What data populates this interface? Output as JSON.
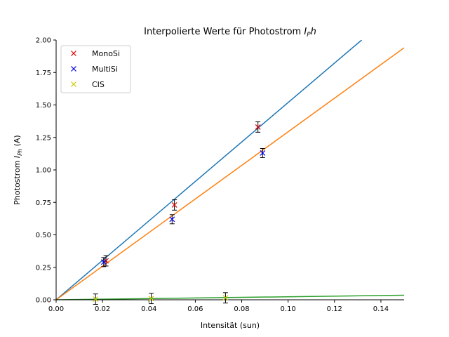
{
  "chart_data": {
    "type": "scatter",
    "title": "Interpolierte Werte für Photostrom ",
    "title_symbol": "I",
    "title_sub": "P",
    "title_tail": "h",
    "xlabel": "Intensität (sun)",
    "ylabel": "Photostrom ",
    "ylabel_symbol": "I",
    "ylabel_sub": "Ph",
    "ylabel_tail": " (A)",
    "xlim": [
      0,
      0.15
    ],
    "ylim": [
      0,
      2.0
    ],
    "xticks": [
      0.0,
      0.02,
      0.04,
      0.06,
      0.08,
      0.1,
      0.12,
      0.14
    ],
    "xtick_labels": [
      "0.00",
      "0.02",
      "0.04",
      "0.06",
      "0.08",
      "0.10",
      "0.12",
      "0.14"
    ],
    "yticks": [
      0.0,
      0.25,
      0.5,
      0.75,
      1.0,
      1.25,
      1.5,
      1.75,
      2.0
    ],
    "ytick_labels": [
      "0.00",
      "0.25",
      "0.50",
      "0.75",
      "1.00",
      "1.25",
      "1.50",
      "1.75",
      "2.00"
    ],
    "grid": false,
    "legend_position": "top-left",
    "series": [
      {
        "name": "MonoSi",
        "marker": "x",
        "color": "#e00000",
        "x": [
          0.0215,
          0.051,
          0.087
        ],
        "y": [
          0.3,
          0.73,
          1.33
        ],
        "yerr": [
          0.04,
          0.04,
          0.04
        ]
      },
      {
        "name": "MultiSi",
        "marker": "x",
        "color": "#0000ee",
        "x": [
          0.0205,
          0.05,
          0.089
        ],
        "y": [
          0.29,
          0.62,
          1.13
        ],
        "yerr": [
          0.035,
          0.035,
          0.035
        ]
      },
      {
        "name": "CIS",
        "marker": "x",
        "color": "#c8c800",
        "x": [
          0.017,
          0.041,
          0.073
        ],
        "y": [
          0.005,
          0.01,
          0.015
        ],
        "yerr": [
          0.04,
          0.04,
          0.04
        ]
      }
    ],
    "fit_lines": [
      {
        "color": "#1f77b4",
        "x": [
          0,
          0.1317
        ],
        "y": [
          0,
          2.0
        ]
      },
      {
        "color": "#ff7f0e",
        "x": [
          0,
          0.15
        ],
        "y": [
          0,
          1.94
        ]
      },
      {
        "color": "#2ca02c",
        "x": [
          0,
          0.15
        ],
        "y": [
          0,
          0.035
        ]
      }
    ]
  }
}
